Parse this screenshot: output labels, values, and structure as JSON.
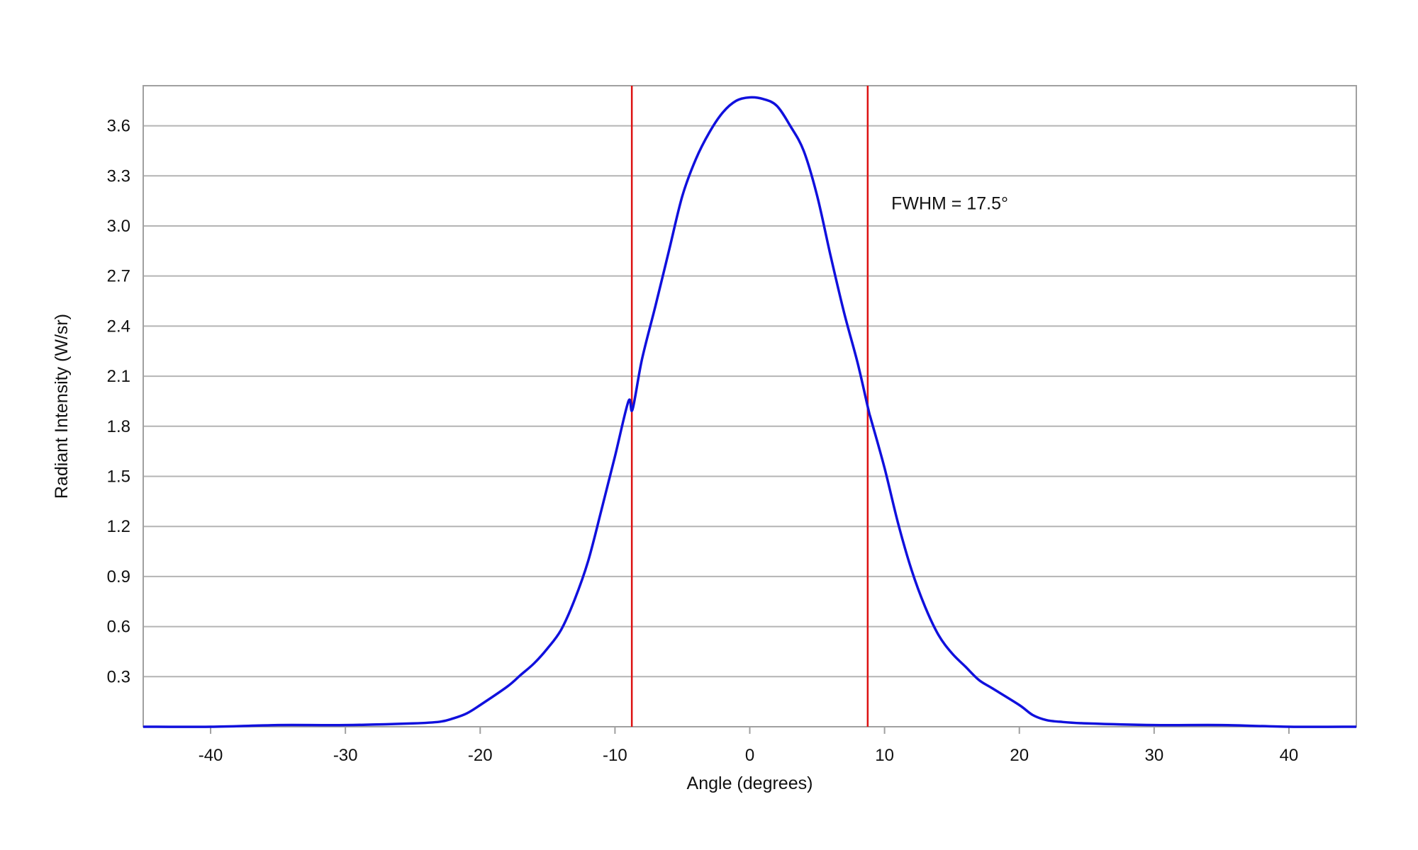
{
  "chart_data": {
    "type": "line",
    "title": "",
    "xlabel": "Angle (degrees)",
    "ylabel": "Radiant Intensity (W/sr)",
    "xlim": [
      -45,
      45
    ],
    "ylim": [
      0,
      3.84
    ],
    "x_ticks": [
      -40,
      -30,
      -20,
      -10,
      0,
      10,
      20,
      30,
      40
    ],
    "x_tick_labels": [
      "-40",
      "-30",
      "-20",
      "-10",
      "0",
      "10",
      "20",
      "30",
      "40"
    ],
    "y_ticks": [
      0.3,
      0.6,
      0.9,
      1.2,
      1.5,
      1.8,
      2.1,
      2.4,
      2.7,
      3.0,
      3.3,
      3.6
    ],
    "y_tick_labels": [
      "0.3",
      "0.6",
      "0.9",
      "1.2",
      "1.5",
      "1.8",
      "2.1",
      "2.4",
      "2.7",
      "3.0",
      "3.3",
      "3.6"
    ],
    "grid": "horizontal",
    "legend": "none",
    "series": [
      {
        "color": "#1010dd",
        "points": [
          [
            -45,
            0.0
          ],
          [
            -40,
            0.0
          ],
          [
            -35,
            0.01
          ],
          [
            -30,
            0.01
          ],
          [
            -25,
            0.02
          ],
          [
            -23,
            0.03
          ],
          [
            -22,
            0.05
          ],
          [
            -21,
            0.08
          ],
          [
            -20,
            0.13
          ],
          [
            -18,
            0.24
          ],
          [
            -17,
            0.31
          ],
          [
            -16,
            0.38
          ],
          [
            -15,
            0.47
          ],
          [
            -14,
            0.58
          ],
          [
            -13,
            0.76
          ],
          [
            -12,
            0.99
          ],
          [
            -11,
            1.3
          ],
          [
            -10,
            1.62
          ],
          [
            -9,
            1.95
          ],
          [
            -8.7,
            1.9
          ],
          [
            -8,
            2.2
          ],
          [
            -7,
            2.52
          ],
          [
            -6,
            2.85
          ],
          [
            -5,
            3.18
          ],
          [
            -4,
            3.4
          ],
          [
            -3,
            3.56
          ],
          [
            -2,
            3.68
          ],
          [
            -1,
            3.75
          ],
          [
            0,
            3.77
          ],
          [
            1,
            3.76
          ],
          [
            2,
            3.72
          ],
          [
            3,
            3.6
          ],
          [
            4,
            3.45
          ],
          [
            5,
            3.18
          ],
          [
            6,
            2.82
          ],
          [
            7,
            2.48
          ],
          [
            8,
            2.18
          ],
          [
            8.8,
            1.9
          ],
          [
            9,
            1.84
          ],
          [
            10,
            1.55
          ],
          [
            11,
            1.22
          ],
          [
            12,
            0.94
          ],
          [
            13,
            0.72
          ],
          [
            14,
            0.55
          ],
          [
            15,
            0.44
          ],
          [
            16,
            0.36
          ],
          [
            17,
            0.28
          ],
          [
            18,
            0.23
          ],
          [
            20,
            0.13
          ],
          [
            21,
            0.07
          ],
          [
            22,
            0.04
          ],
          [
            23,
            0.03
          ],
          [
            25,
            0.02
          ],
          [
            30,
            0.01
          ],
          [
            35,
            0.01
          ],
          [
            40,
            0.0
          ],
          [
            45,
            0.0
          ]
        ]
      }
    ],
    "vertical_markers": [
      {
        "x": -8.75,
        "color": "#dd1111"
      },
      {
        "x": 8.75,
        "color": "#dd1111"
      }
    ],
    "annotations": [
      {
        "text": "FWHM = 17.5°",
        "x": 10.5,
        "y": 3.1
      }
    ]
  }
}
